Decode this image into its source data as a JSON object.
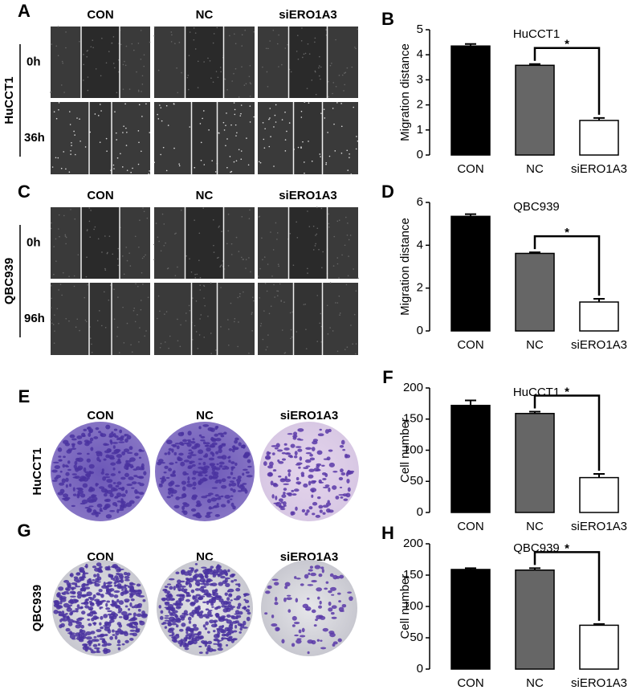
{
  "figure_panels": [
    {
      "letter": "A",
      "columns": [
        "CON",
        "NC",
        "siERO1A3"
      ],
      "rows": [
        "0h",
        "36h"
      ],
      "cell_line": "HuCCT1"
    },
    {
      "letter": "C",
      "columns": [
        "CON",
        "NC",
        "siERO1A3"
      ],
      "rows": [
        "0h",
        "96h"
      ],
      "cell_line": "QBC939"
    },
    {
      "letter": "E",
      "columns": [
        "CON",
        "NC",
        "siERO1A3"
      ],
      "cell_line": "HuCCT1"
    },
    {
      "letter": "G",
      "columns": [
        "CON",
        "NC",
        "siERO1A3"
      ],
      "cell_line": "QBC939"
    }
  ],
  "chart_data": [
    {
      "type": "bar",
      "panel_label": "B",
      "title": "HuCCT1",
      "ylabel": "Migration distance",
      "annotation": "*",
      "categories": [
        "CON",
        "NC",
        "siERO1A3"
      ],
      "values": [
        4.35,
        3.58,
        1.38
      ],
      "errors": [
        0.08,
        0.05,
        0.1
      ],
      "colors": [
        "#000000",
        "#666666",
        "#ffffff"
      ],
      "ylim": [
        0,
        5
      ],
      "yticks": [
        0,
        1,
        2,
        3,
        4,
        5
      ]
    },
    {
      "type": "bar",
      "panel_label": "D",
      "title": "QBC939",
      "ylabel": "Migration distance",
      "annotation": "*",
      "categories": [
        "CON",
        "NC",
        "siERO1A3"
      ],
      "values": [
        5.35,
        3.62,
        1.35
      ],
      "errors": [
        0.1,
        0.05,
        0.15
      ],
      "colors": [
        "#000000",
        "#666666",
        "#ffffff"
      ],
      "ylim": [
        0,
        6
      ],
      "yticks": [
        0,
        2,
        4,
        6
      ]
    },
    {
      "type": "bar",
      "panel_label": "F",
      "title": "HuCCT1",
      "ylabel": "Cell number",
      "annotation": "*",
      "categories": [
        "CON",
        "NC",
        "siERO1A3"
      ],
      "values": [
        172,
        159,
        56
      ],
      "errors": [
        8,
        3,
        6
      ],
      "colors": [
        "#000000",
        "#666666",
        "#ffffff"
      ],
      "ylim": [
        0,
        200
      ],
      "yticks": [
        0,
        50,
        100,
        150,
        200
      ]
    },
    {
      "type": "bar",
      "panel_label": "H",
      "title": "QBC939",
      "ylabel": "Cell number",
      "annotation": "*",
      "categories": [
        "CON",
        "NC",
        "siERO1A3"
      ],
      "values": [
        159,
        158,
        70
      ],
      "errors": [
        2,
        3,
        2
      ],
      "colors": [
        "#000000",
        "#666666",
        "#ffffff"
      ],
      "ylim": [
        0,
        200
      ],
      "yticks": [
        0,
        50,
        100,
        150,
        200
      ]
    }
  ]
}
